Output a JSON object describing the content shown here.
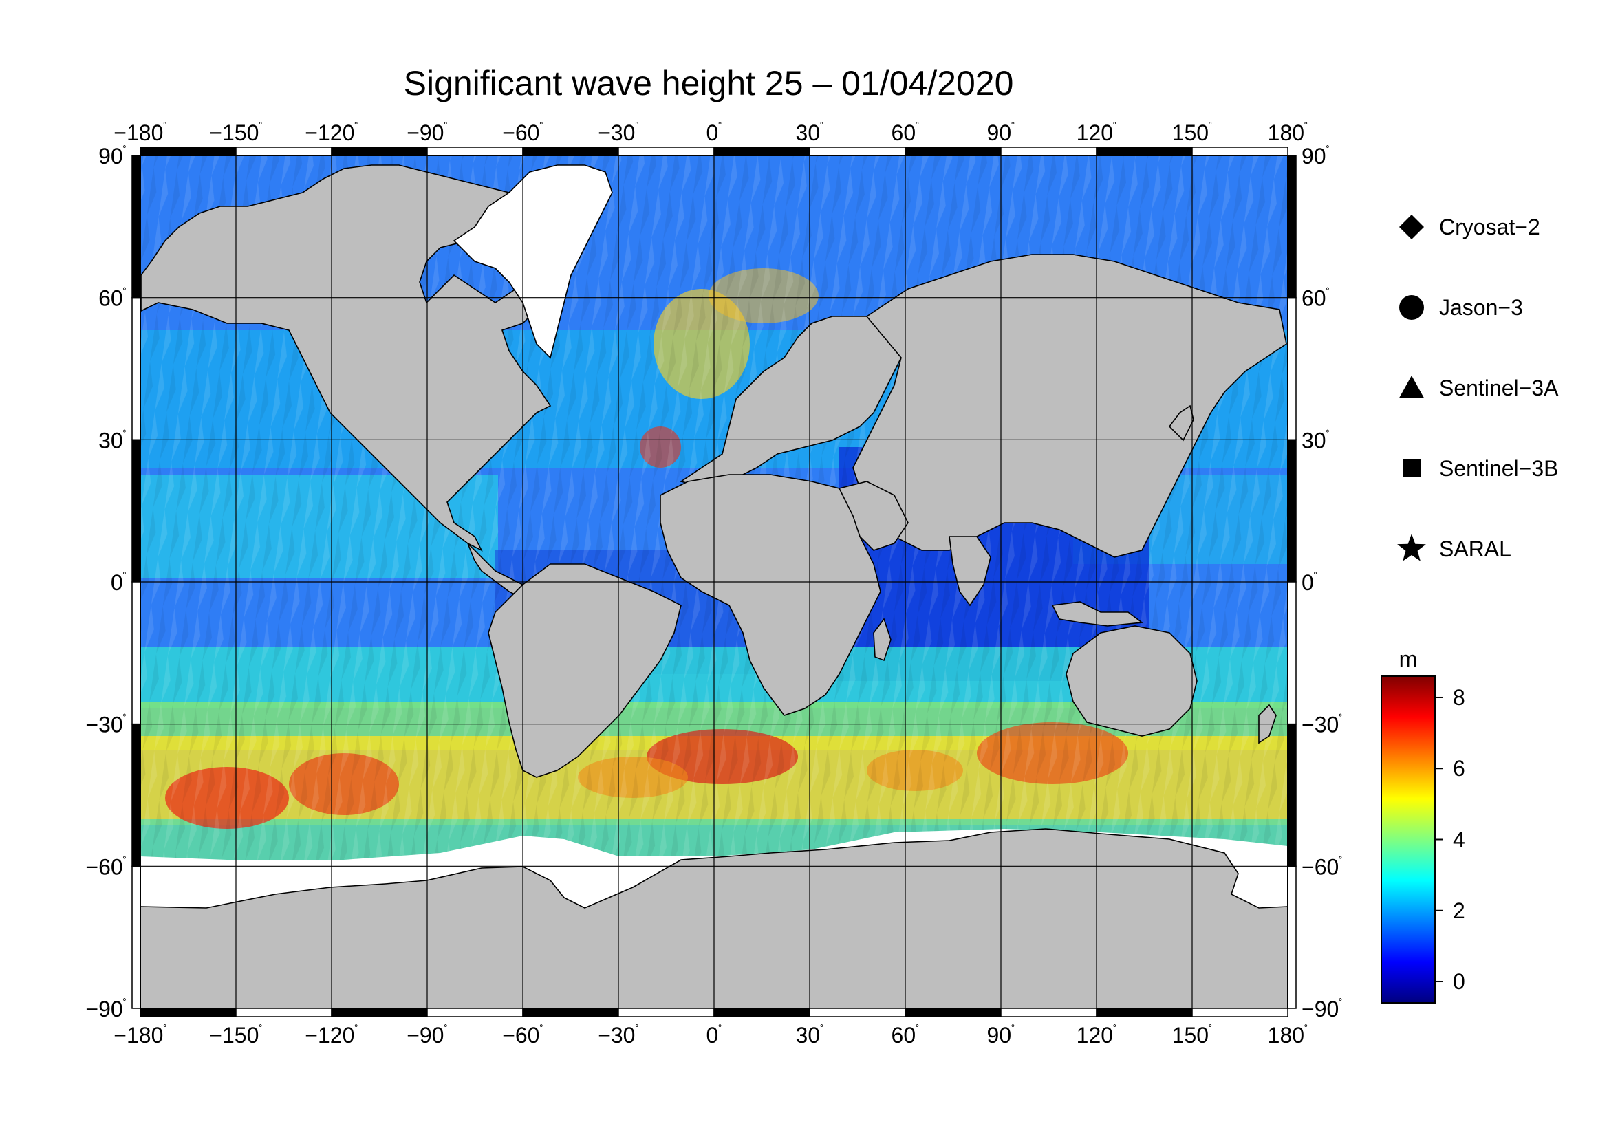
{
  "title": "Significant wave height 25 – 01/04/2020",
  "axes": {
    "lon_ticks": [
      {
        "value": -180,
        "label": "−180"
      },
      {
        "value": -150,
        "label": "−150"
      },
      {
        "value": -120,
        "label": "−120"
      },
      {
        "value": -90,
        "label": "−90"
      },
      {
        "value": -60,
        "label": "−60"
      },
      {
        "value": -30,
        "label": "−30"
      },
      {
        "value": 0,
        "label": "0"
      },
      {
        "value": 30,
        "label": "30"
      },
      {
        "value": 60,
        "label": "60"
      },
      {
        "value": 90,
        "label": "90"
      },
      {
        "value": 120,
        "label": "120"
      },
      {
        "value": 150,
        "label": "150"
      },
      {
        "value": 180,
        "label": "180"
      }
    ],
    "lat_ticks": [
      {
        "value": 90,
        "label": "90"
      },
      {
        "value": 60,
        "label": "60"
      },
      {
        "value": 30,
        "label": "30"
      },
      {
        "value": 0,
        "label": "0"
      },
      {
        "value": -30,
        "label": "−30"
      },
      {
        "value": -60,
        "label": "−60"
      },
      {
        "value": -90,
        "label": "−90"
      }
    ],
    "degree_symbol": "˚",
    "lon_range": [
      -180,
      180
    ],
    "lat_range": [
      -90,
      90
    ],
    "grid": true
  },
  "legend": {
    "placement": "right",
    "items": [
      {
        "symbol": "diamond",
        "label": "Cryosat−2"
      },
      {
        "symbol": "circle",
        "label": "Jason−3"
      },
      {
        "symbol": "triangle",
        "label": "Sentinel−3A"
      },
      {
        "symbol": "square",
        "label": "Sentinel−3B"
      },
      {
        "symbol": "star",
        "label": "SARAL"
      }
    ]
  },
  "colorbar": {
    "unit": "m",
    "min": -0.6,
    "max": 8.6,
    "ticks": [
      {
        "value": 0,
        "label": "0"
      },
      {
        "value": 2,
        "label": "2"
      },
      {
        "value": 4,
        "label": "4"
      },
      {
        "value": 6,
        "label": "6"
      },
      {
        "value": 8,
        "label": "8"
      }
    ],
    "colors": [
      "#00007f",
      "#0000ff",
      "#0080ff",
      "#00ffff",
      "#80ff80",
      "#ffff00",
      "#ff8000",
      "#ff0000",
      "#800000"
    ]
  },
  "colors": {
    "land": "#bebebe",
    "ice": "#ffffff",
    "frame": "#000000"
  }
}
